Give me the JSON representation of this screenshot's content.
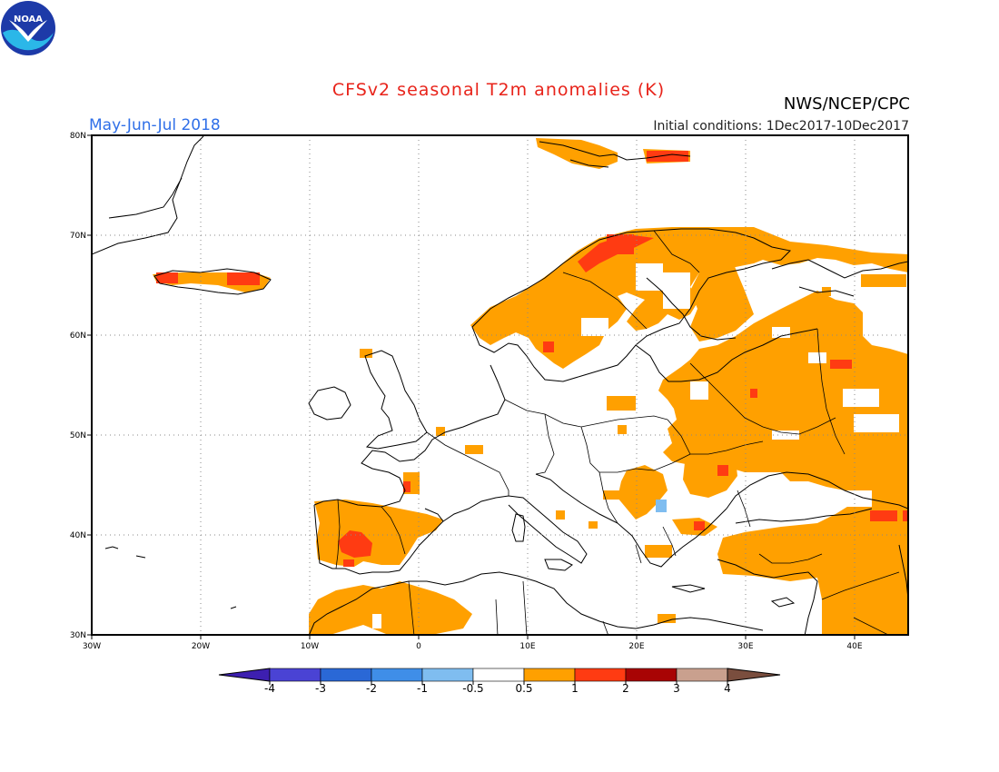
{
  "header": {
    "title": "CFSv2 seasonal T2m anomalies (K)",
    "period": "May-Jun-Jul 2018",
    "initial_conditions": "Initial conditions: 1Dec2017-10Dec2017",
    "agency": "NWS/NCEP/CPC",
    "logo_text": "NOAA"
  },
  "map": {
    "lon_range": [
      -30,
      45
    ],
    "lat_range": [
      30,
      80
    ],
    "lat_ticks": [
      "80N",
      "70N",
      "60N",
      "50N",
      "40N",
      "30N"
    ],
    "lon_ticks": [
      "30W",
      "20W",
      "10W",
      "0",
      "10E",
      "20E",
      "30E",
      "40E"
    ],
    "grid_style": "dotted",
    "anomaly_regions": [
      {
        "name": "Scandinavia and Finland",
        "category": "0.5 to 1"
      },
      {
        "name": "Northern Norway coast",
        "category": "1 to 2"
      },
      {
        "name": "Iceland",
        "category": "0.5 to 1"
      },
      {
        "name": "Svalbard",
        "category": "0.5 to 1"
      },
      {
        "name": "Eastern Europe and western Russia",
        "category": "0.5 to 1"
      },
      {
        "name": "Iberian Peninsula",
        "category": "0.5 to 1"
      },
      {
        "name": "Central Spain",
        "category": "1 to 2"
      },
      {
        "name": "North Africa",
        "category": "0.5 to 1"
      },
      {
        "name": "Turkey and Middle East",
        "category": "0.5 to 1"
      },
      {
        "name": "Balkans",
        "category": "-1 to -0.5"
      }
    ]
  },
  "colorbar": {
    "labels": [
      "-4",
      "-3",
      "-2",
      "-1",
      "-0.5",
      "0.5",
      "1",
      "2",
      "3",
      "4"
    ],
    "colors": [
      "#3d1fb0",
      "#4a43d4",
      "#2a68d6",
      "#3f8ee8",
      "#7fbdf0",
      "#ffffff",
      "#ffa000",
      "#ff3b12",
      "#a80404",
      "#c9a08e",
      "#7a4e3e"
    ]
  }
}
